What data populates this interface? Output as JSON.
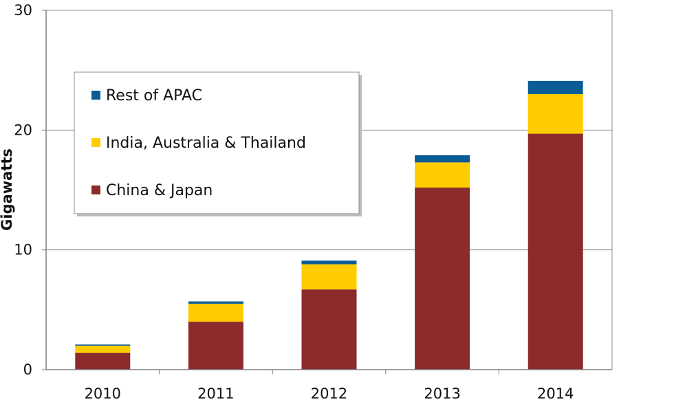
{
  "chart_data": {
    "type": "bar",
    "stacked": true,
    "title": "",
    "xlabel": "",
    "ylabel": "Gigawatts",
    "ylim": [
      0,
      30
    ],
    "yticks": [
      0,
      10,
      20,
      30
    ],
    "grid": true,
    "legend_position": "top-left",
    "categories": [
      "2010",
      "2011",
      "2012",
      "2013",
      "2014"
    ],
    "series": [
      {
        "name": "China & Japan",
        "color": "#8b2b2b",
        "values": [
          1.4,
          4.0,
          6.7,
          15.2,
          19.7
        ]
      },
      {
        "name": "India, Australia & Thailand",
        "color": "#ffcc00",
        "values": [
          0.6,
          1.5,
          2.1,
          2.1,
          3.3
        ]
      },
      {
        "name": "Rest of APAC",
        "color": "#0a5c96",
        "values": [
          0.1,
          0.2,
          0.3,
          0.6,
          1.1
        ]
      }
    ],
    "legend_order": [
      "Rest of APAC",
      "India, Australia & Thailand",
      "China & Japan"
    ]
  }
}
